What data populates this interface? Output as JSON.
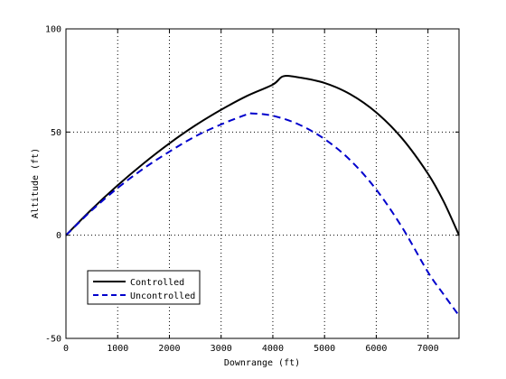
{
  "chart_data": {
    "type": "line",
    "title": "",
    "xlabel": "Downrange (ft)",
    "ylabel": "Altitude (ft)",
    "xlim": [
      0,
      7600
    ],
    "ylim": [
      -50,
      100
    ],
    "x_ticks": [
      0,
      1000,
      2000,
      3000,
      4000,
      5000,
      6000,
      7000
    ],
    "y_ticks": [
      -50,
      0,
      50,
      100
    ],
    "grid": true,
    "legend_location": "lower-left",
    "series": [
      {
        "name": "Controlled",
        "color": "#000000",
        "style": "solid",
        "points": [
          [
            0,
            0
          ],
          [
            500,
            12.6
          ],
          [
            1000,
            24.2
          ],
          [
            1500,
            34.8
          ],
          [
            2000,
            44.5
          ],
          [
            2500,
            53.2
          ],
          [
            3000,
            60.8
          ],
          [
            3500,
            67.5
          ],
          [
            4000,
            73.0
          ],
          [
            4200,
            77.0
          ],
          [
            4500,
            76.5
          ],
          [
            5000,
            73.8
          ],
          [
            5500,
            68.3
          ],
          [
            6000,
            59.5
          ],
          [
            6500,
            46.9
          ],
          [
            7000,
            29.8
          ],
          [
            7300,
            16.5
          ],
          [
            7600,
            0
          ]
        ]
      },
      {
        "name": "Uncontrolled",
        "color": "#0000cc",
        "style": "dashed",
        "points": [
          [
            0,
            0
          ],
          [
            500,
            12.1
          ],
          [
            1000,
            22.9
          ],
          [
            1500,
            32.3
          ],
          [
            2000,
            40.5
          ],
          [
            2500,
            47.9
          ],
          [
            3000,
            53.7
          ],
          [
            3500,
            58.6
          ],
          [
            3600,
            59.0
          ],
          [
            4000,
            57.9
          ],
          [
            4500,
            53.7
          ],
          [
            5000,
            46.6
          ],
          [
            5500,
            36.3
          ],
          [
            6000,
            22.1
          ],
          [
            6500,
            3.8
          ],
          [
            7000,
            -17.9
          ],
          [
            7300,
            -28.6
          ],
          [
            7600,
            -39.0
          ]
        ]
      }
    ]
  }
}
